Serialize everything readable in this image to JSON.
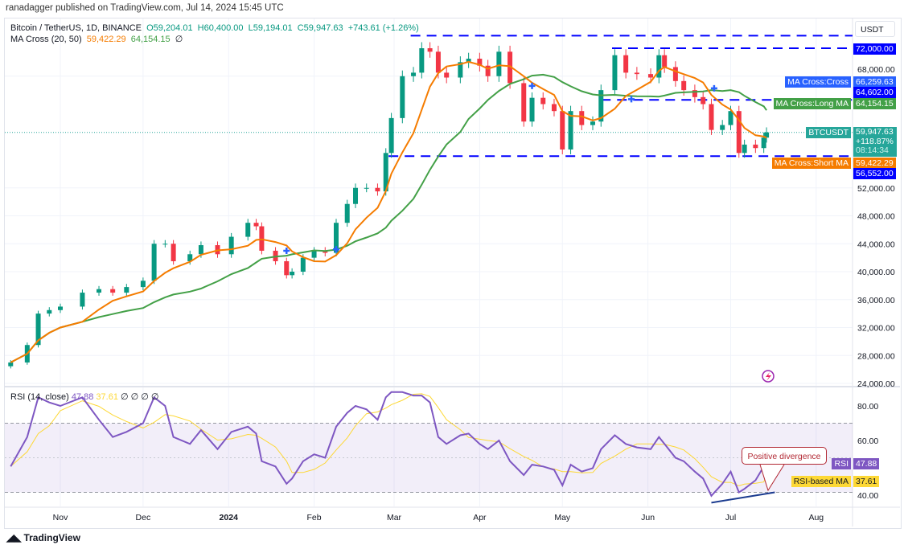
{
  "header": {
    "published": "ranadagger published on TradingView.com, Jul 14, 2024 15:45 UTC",
    "symbol": "Bitcoin / TetherUS, 1D, BINANCE",
    "open": "O59,204.01",
    "high": "H60,400.00",
    "low": "L59,194.01",
    "close": "C59,947.63",
    "change": "+743.61 (+1.26%)",
    "ma_label": "MA Cross (20, 50)",
    "ma_short": "59,422.29",
    "ma_long": "64,154.15",
    "ma_extra": "∅"
  },
  "rsi_legend": {
    "label": "RSI (14, close)",
    "rsi": "47.88",
    "ma": "37.61",
    "extras": "∅ ∅ ∅ ∅"
  },
  "axis": {
    "currency": "USDT"
  },
  "badges": {
    "level_72000": "72,000.00",
    "ma_cross_label": "MA Cross:Cross",
    "ma_cross_value": "66,259.63",
    "level_64602": "64,602.00",
    "long_ma_label": "MA Cross:Long MA",
    "long_ma_value": "64,154.15",
    "symbol_label": "BTCUSDT",
    "price": "59,947.63",
    "pct": "+118.87%",
    "countdown": "08:14:34",
    "short_ma_label": "MA Cross:Short MA",
    "short_ma_value": "59,422.29",
    "level_56552": "56,552.00",
    "rsi_label": "RSI",
    "rsi_value": "47.88",
    "rsi_ma_label": "RSI-based MA",
    "rsi_ma_value": "37.61"
  },
  "annotation": "Positive divergence",
  "footer": {
    "brand": "TradingView"
  },
  "colors": {
    "up": "#089981",
    "down": "#f23645",
    "short_ma": "#f57c00",
    "long_ma": "#43a047",
    "level": "#0000ff",
    "rsi": "#7e57c2",
    "rsi_ma": "#fdd835",
    "cross": "#2962ff"
  },
  "chart_data": {
    "type": "candlestick",
    "time_ticks": [
      "Nov",
      "Dec",
      "2024",
      "Feb",
      "Mar",
      "Apr",
      "May",
      "Jun",
      "Jul",
      "Aug"
    ],
    "time_tick_dates": [
      "2023-11-01",
      "2023-12-01",
      "2024-01-01",
      "2024-02-01",
      "2024-03-01",
      "2024-04-01",
      "2024-05-01",
      "2024-06-01",
      "2024-07-01",
      "2024-08-01"
    ],
    "price_ticks": [
      24000,
      28000,
      32000,
      36000,
      40000,
      44000,
      48000,
      52000,
      68000
    ],
    "price_tick_labels": [
      "24,000.00",
      "28,000.00",
      "32,000.00",
      "36,000.00",
      "40,000.00",
      "44,000.00",
      "48,000.00",
      "52,000.00",
      "68,000.00"
    ],
    "ylim": [
      24000,
      74500
    ],
    "dates": [
      "2023-10-14",
      "2023-10-20",
      "2023-10-24",
      "2023-10-28",
      "2023-11-01",
      "2023-11-09",
      "2023-11-15",
      "2023-11-20",
      "2023-11-25",
      "2023-12-01",
      "2023-12-05",
      "2023-12-09",
      "2023-12-12",
      "2023-12-18",
      "2023-12-22",
      "2023-12-28",
      "2024-01-02",
      "2024-01-08",
      "2024-01-11",
      "2024-01-13",
      "2024-01-18",
      "2024-01-22",
      "2024-01-24",
      "2024-01-28",
      "2024-02-01",
      "2024-02-05",
      "2024-02-09",
      "2024-02-13",
      "2024-02-16",
      "2024-02-20",
      "2024-02-24",
      "2024-02-27",
      "2024-02-29",
      "2024-03-04",
      "2024-03-08",
      "2024-03-11",
      "2024-03-14",
      "2024-03-17",
      "2024-03-20",
      "2024-03-25",
      "2024-03-28",
      "2024-04-01",
      "2024-04-04",
      "2024-04-08",
      "2024-04-12",
      "2024-04-17",
      "2024-04-20",
      "2024-04-24",
      "2024-04-28",
      "2024-05-01",
      "2024-05-04",
      "2024-05-08",
      "2024-05-12",
      "2024-05-15",
      "2024-05-20",
      "2024-05-24",
      "2024-05-28",
      "2024-06-02",
      "2024-06-05",
      "2024-06-07",
      "2024-06-11",
      "2024-06-14",
      "2024-06-18",
      "2024-06-21",
      "2024-06-24",
      "2024-06-28",
      "2024-07-01",
      "2024-07-04",
      "2024-07-06",
      "2024-07-10",
      "2024-07-13",
      "2024-07-14"
    ],
    "close": [
      27000,
      29500,
      34000,
      34500,
      35000,
      37000,
      37500,
      37000,
      37800,
      38700,
      44000,
      44000,
      41500,
      42500,
      43800,
      42500,
      45000,
      47000,
      46500,
      43000,
      41500,
      39500,
      40000,
      42000,
      43000,
      42700,
      47000,
      49700,
      52000,
      52000,
      51500,
      57000,
      62000,
      68000,
      68500,
      72000,
      71500,
      68500,
      67800,
      70000,
      70500,
      69500,
      68000,
      71500,
      67000,
      61500,
      64900,
      64000,
      63000,
      57500,
      63000,
      61000,
      61500,
      66000,
      71000,
      68500,
      68300,
      67800,
      71000,
      69300,
      67300,
      66000,
      65000,
      64000,
      60300,
      61000,
      63000,
      57000,
      58200,
      57700,
      59200,
      59947.63
    ],
    "rsi": [
      45,
      62,
      85,
      82,
      80,
      85,
      72,
      62,
      65,
      70,
      85,
      80,
      62,
      58,
      66,
      55,
      65,
      68,
      64,
      48,
      45,
      35,
      38,
      48,
      52,
      50,
      68,
      76,
      80,
      78,
      72,
      85,
      88,
      88,
      86,
      86,
      82,
      62,
      58,
      63,
      64,
      58,
      55,
      60,
      48,
      40,
      46,
      45,
      43,
      34,
      46,
      42,
      44,
      55,
      63,
      58,
      56,
      55,
      62,
      58,
      50,
      48,
      42,
      38,
      28,
      35,
      42,
      30,
      32,
      37,
      45,
      47.88
    ],
    "rsi_ticks": [
      80,
      60,
      40
    ],
    "rsi_tick_labels": [
      "80.00",
      "60.00",
      "40.00"
    ],
    "rsi_band": [
      30,
      70
    ],
    "levels": [
      {
        "value": 73800,
        "from": "2024-03-07"
      },
      {
        "value": 72000,
        "from": "2024-05-19"
      },
      {
        "value": 64602,
        "from": "2024-05-15"
      },
      {
        "value": 56552,
        "from": "2024-02-28"
      }
    ],
    "ma_cross_points": [
      {
        "date": "2024-01-22",
        "value": 43000
      },
      {
        "date": "2024-02-09",
        "value": 43200
      },
      {
        "date": "2024-04-20",
        "value": 66600
      },
      {
        "date": "2024-05-26",
        "value": 64700
      },
      {
        "date": "2024-06-25",
        "value": 66259.63
      }
    ],
    "rsi_trendline": [
      {
        "date": "2024-06-24",
        "value": 24
      },
      {
        "date": "2024-07-17",
        "value": 30
      }
    ]
  }
}
